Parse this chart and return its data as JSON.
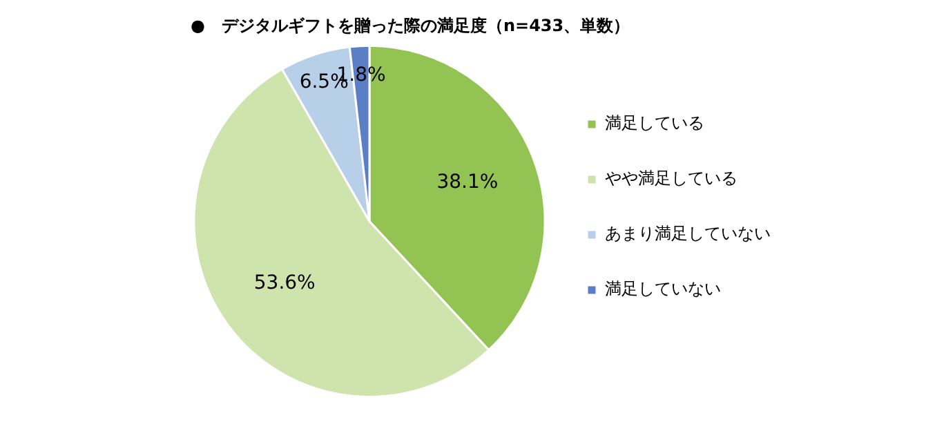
{
  "chart_data": {
    "type": "pie",
    "title": "●　デジタルギフトを贈った際の満足度（n=433、単数）",
    "categories": [
      "満足している",
      "やや満足している",
      "あまり満足していない",
      "満足していない"
    ],
    "values": [
      38.1,
      53.6,
      6.5,
      1.8
    ],
    "colors": [
      "#92c353",
      "#cfe3ad",
      "#b8cfea",
      "#5b7fc4"
    ],
    "value_labels": [
      "38.1%",
      "53.6%",
      "6.5%",
      "1.8%"
    ],
    "legend": "right"
  }
}
